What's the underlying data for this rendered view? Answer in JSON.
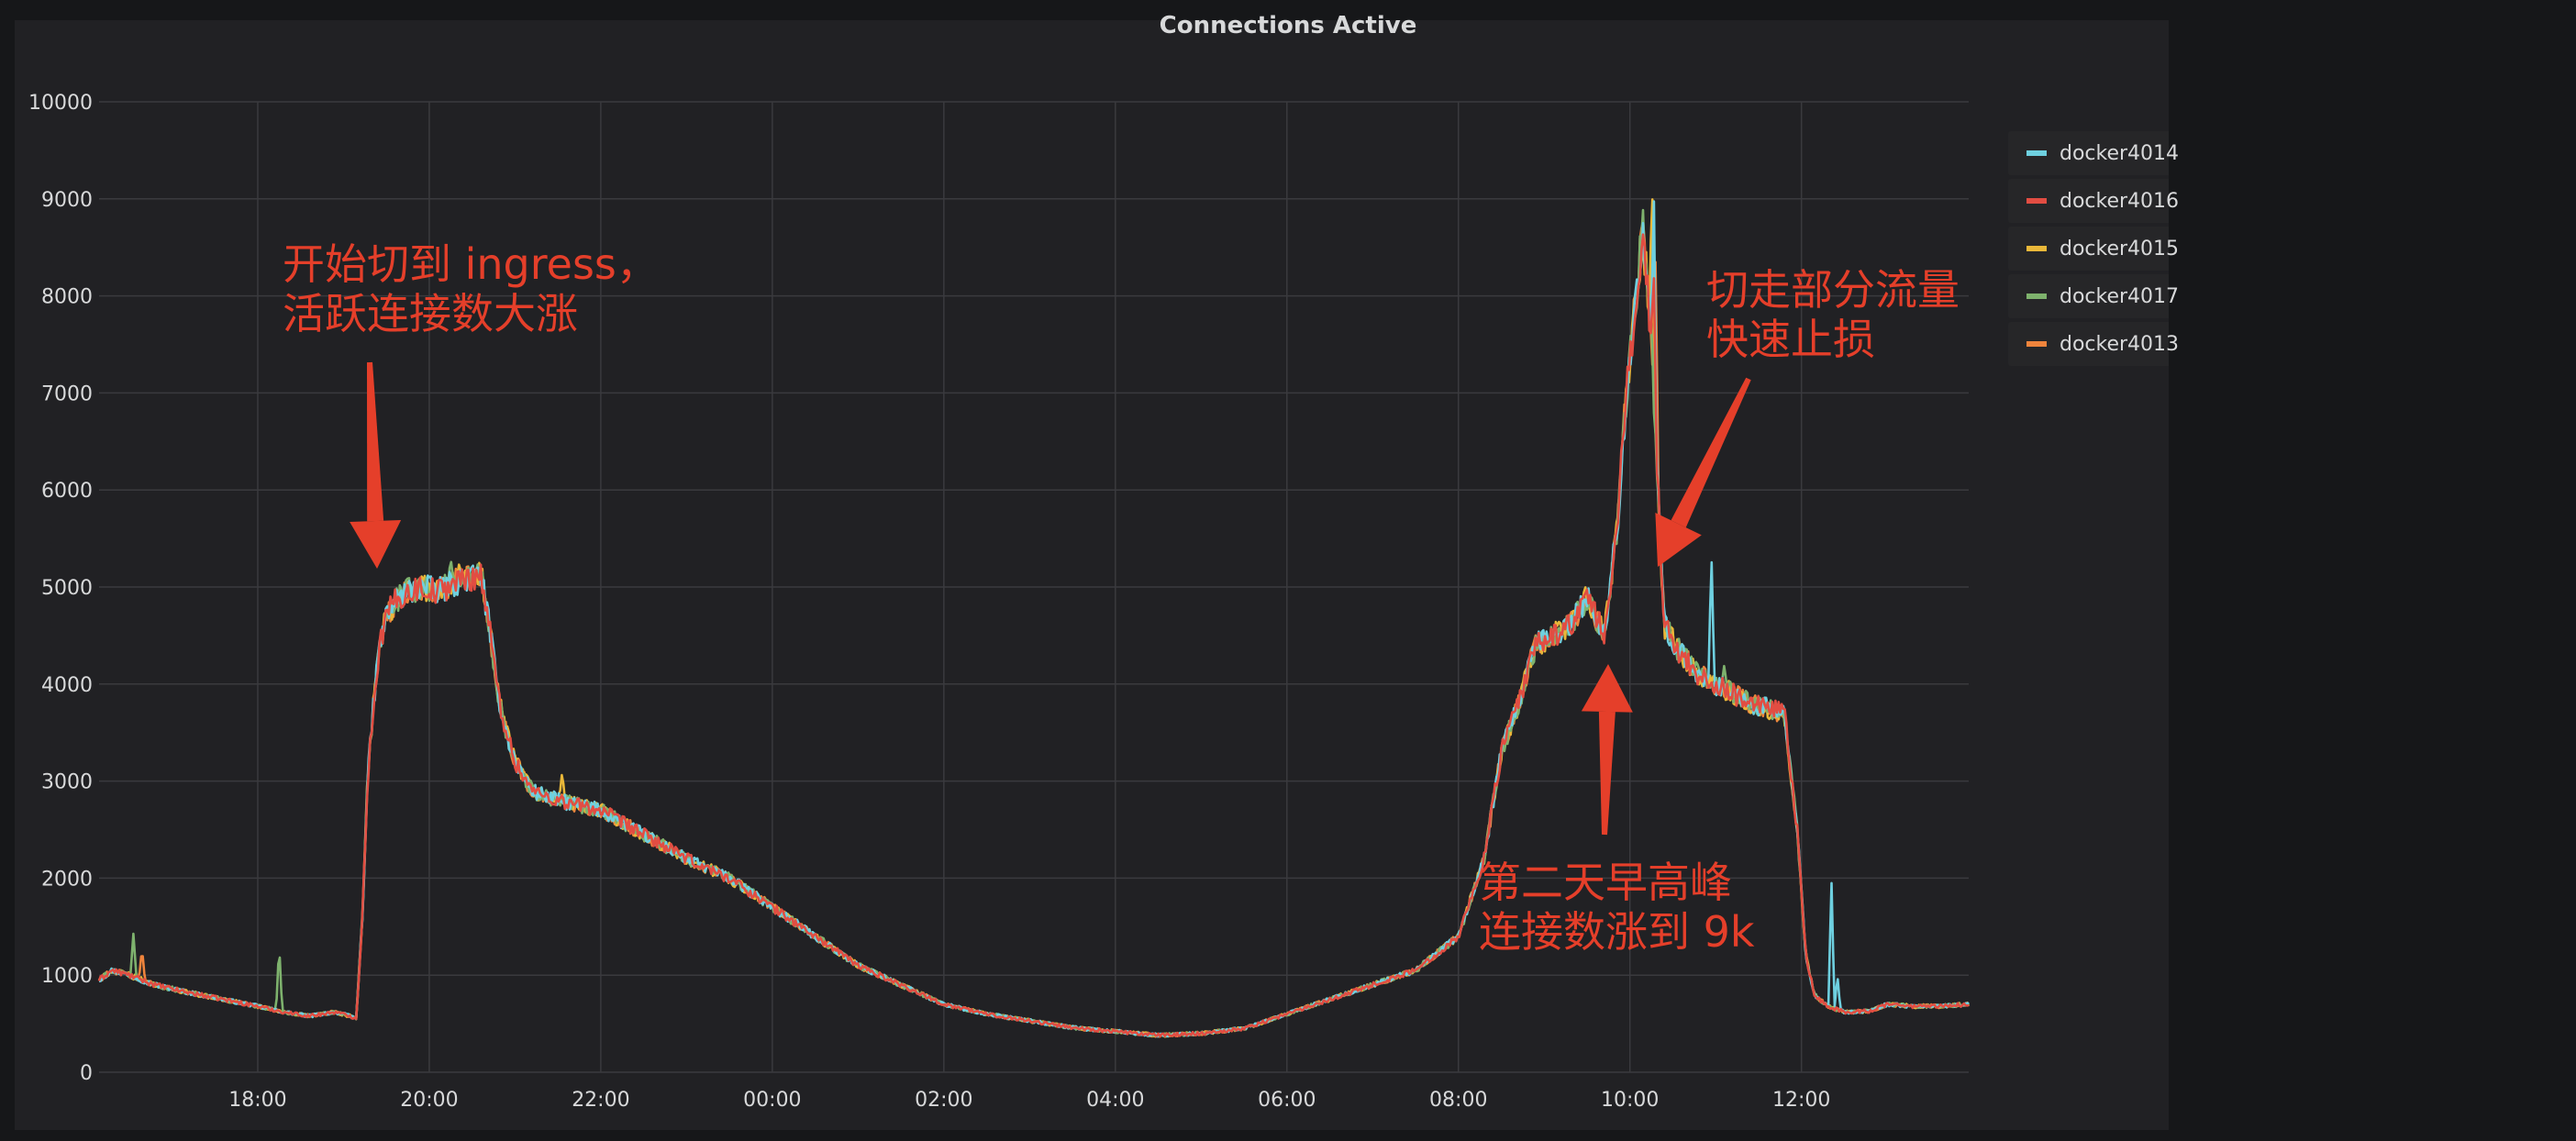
{
  "chart_data": {
    "type": "line",
    "title": "Connections Active",
    "ylim": [
      0,
      10000
    ],
    "yticks": [
      0,
      1000,
      2000,
      3000,
      4000,
      5000,
      6000,
      7000,
      8000,
      9000,
      10000
    ],
    "ytick_labels": [
      "0",
      "1000",
      "2000",
      "3000",
      "4000",
      "5000",
      "6000",
      "7000",
      "8000",
      "9000",
      "10000"
    ],
    "xlim_hours": [
      16.15,
      37.95
    ],
    "xticks_hours": [
      18,
      20,
      22,
      24,
      26,
      28,
      30,
      32,
      34,
      36
    ],
    "xtick_labels": [
      "18:00",
      "20:00",
      "22:00",
      "00:00",
      "02:00",
      "04:00",
      "06:00",
      "08:00",
      "10:00",
      "12:00"
    ],
    "grid": true,
    "legend_position": "right",
    "baseline": {
      "x_hours": [
        16.15,
        16.3,
        16.5,
        16.8,
        17.2,
        17.6,
        18.0,
        18.3,
        18.6,
        18.9,
        19.15,
        19.22,
        19.28,
        19.35,
        19.42,
        19.5,
        19.6,
        19.75,
        19.9,
        20.1,
        20.3,
        20.5,
        20.6,
        20.7,
        20.8,
        20.9,
        21.0,
        21.2,
        21.5,
        22.0,
        22.5,
        23.0,
        23.5,
        24.0,
        24.5,
        25.0,
        25.5,
        26.0,
        26.5,
        27.0,
        27.5,
        28.0,
        28.5,
        29.0,
        29.5,
        30.0,
        30.5,
        31.0,
        31.5,
        32.0,
        32.3,
        32.5,
        32.7,
        32.9,
        33.1,
        33.3,
        33.5,
        33.7,
        33.85,
        33.95,
        34.05,
        34.15,
        34.25,
        34.4,
        34.6,
        34.8,
        35.0,
        35.2,
        35.4,
        35.6,
        35.8,
        35.95,
        36.05,
        36.15,
        36.3,
        36.5,
        36.8,
        37.0,
        37.3,
        37.6,
        37.95
      ],
      "values": [
        950,
        1050,
        1000,
        900,
        820,
        750,
        680,
        620,
        580,
        620,
        560,
        1600,
        3000,
        3800,
        4400,
        4700,
        4850,
        4950,
        5000,
        4950,
        5050,
        5100,
        5150,
        4600,
        3900,
        3500,
        3200,
        2900,
        2800,
        2700,
        2450,
        2200,
        2000,
        1700,
        1400,
        1100,
        900,
        700,
        600,
        530,
        460,
        420,
        380,
        400,
        450,
        600,
        750,
        900,
        1050,
        1400,
        2200,
        3300,
        3800,
        4400,
        4500,
        4600,
        4900,
        4500,
        5600,
        6900,
        7800,
        8700,
        7500,
        4600,
        4300,
        4100,
        4000,
        3900,
        3800,
        3750,
        3700,
        2500,
        1200,
        800,
        680,
        620,
        630,
        700,
        680,
        680,
        700
      ]
    },
    "series": [
      {
        "name": "docker4014",
        "color": "#6ed0e0",
        "spikes": [
          [
            34.28,
            9000
          ],
          [
            34.95,
            5350
          ],
          [
            36.35,
            2000
          ],
          [
            36.42,
            1000
          ]
        ]
      },
      {
        "name": "docker4016",
        "color": "#e24d42",
        "spikes": [
          [
            34.28,
            8200
          ]
        ]
      },
      {
        "name": "docker4015",
        "color": "#eab839",
        "spikes": [
          [
            34.26,
            9150
          ],
          [
            20.35,
            5250
          ],
          [
            21.55,
            3100
          ]
        ]
      },
      {
        "name": "docker4017",
        "color": "#7eb26d",
        "spikes": [
          [
            16.55,
            1430
          ],
          [
            18.25,
            1330
          ],
          [
            20.25,
            5300
          ],
          [
            35.1,
            4200
          ]
        ]
      },
      {
        "name": "docker4013",
        "color": "#ef843c",
        "spikes": [
          [
            16.65,
            1280
          ],
          [
            34.3,
            8400
          ],
          [
            35.35,
            3700
          ]
        ]
      }
    ]
  },
  "annotations": [
    {
      "lines": [
        "开始切到 ingress，",
        "活跃连接数大涨"
      ]
    },
    {
      "lines": [
        "切走部分流量",
        "快速止损"
      ]
    },
    {
      "lines": [
        "第二天早高峰",
        "连接数涨到 9k"
      ]
    }
  ],
  "annotation_color": "#e53f2a"
}
